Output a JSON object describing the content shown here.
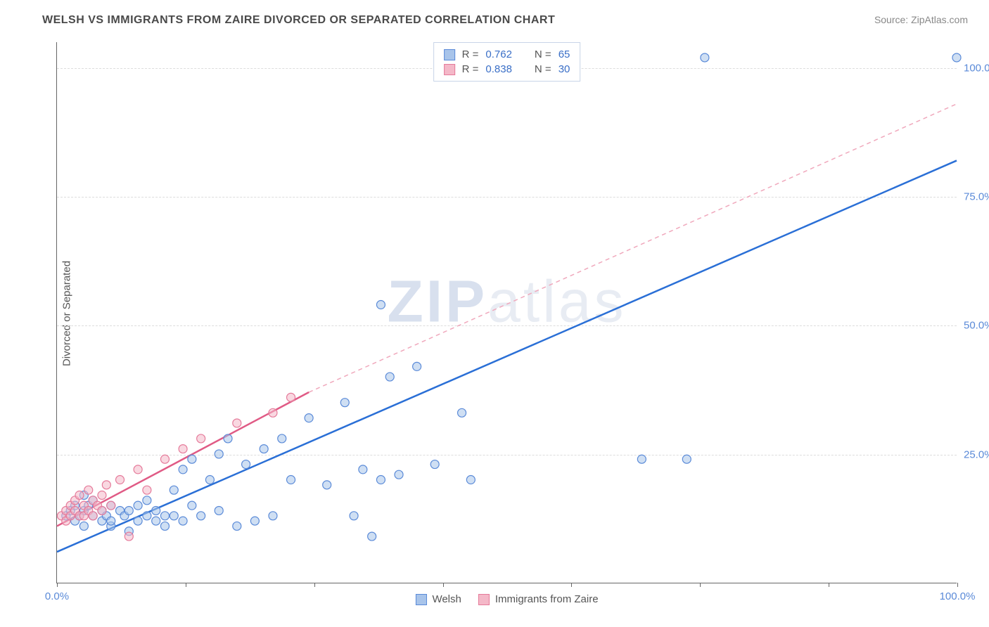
{
  "title": "WELSH VS IMMIGRANTS FROM ZAIRE DIVORCED OR SEPARATED CORRELATION CHART",
  "source": "Source: ZipAtlas.com",
  "ylabel": "Divorced or Separated",
  "watermark_bold": "ZIP",
  "watermark_rest": "atlas",
  "chart": {
    "type": "scatter-with-regression",
    "xlim": [
      0,
      100
    ],
    "ylim": [
      0,
      105
    ],
    "ytick_values": [
      25,
      50,
      75,
      100
    ],
    "ytick_labels": [
      "25.0%",
      "50.0%",
      "75.0%",
      "100.0%"
    ],
    "xtick_values": [
      0,
      14.3,
      28.6,
      42.9,
      57.1,
      71.4,
      85.7,
      100
    ],
    "xtick_labels_shown": {
      "0": "0.0%",
      "100": "100.0%"
    },
    "grid_color": "#dddddd",
    "background_color": "#ffffff",
    "axis_color": "#666666",
    "marker_radius": 6,
    "marker_stroke_width": 1.2,
    "series": [
      {
        "name": "Welsh",
        "fill_color": "#a8c4ea",
        "stroke_color": "#5a8ad8",
        "fill_opacity": 0.55,
        "line_color": "#2a6fd6",
        "line_width": 2.5,
        "line_dash": "none",
        "regression": {
          "x1": 0,
          "y1": 6,
          "x2": 100,
          "y2": 82
        },
        "R": 0.762,
        "N": 65,
        "points": [
          [
            1,
            13
          ],
          [
            1.5,
            14
          ],
          [
            2,
            12
          ],
          [
            2,
            15
          ],
          [
            2.5,
            13
          ],
          [
            3,
            11
          ],
          [
            3,
            14
          ],
          [
            3.5,
            15
          ],
          [
            4,
            13
          ],
          [
            4,
            16
          ],
          [
            5,
            12
          ],
          [
            5,
            14
          ],
          [
            5.5,
            13
          ],
          [
            6,
            15
          ],
          [
            6,
            11
          ],
          [
            7,
            14
          ],
          [
            7.5,
            13
          ],
          [
            8,
            10
          ],
          [
            8,
            14
          ],
          [
            9,
            12
          ],
          [
            9,
            15
          ],
          [
            10,
            13
          ],
          [
            10,
            16
          ],
          [
            11,
            12
          ],
          [
            11,
            14
          ],
          [
            12,
            13
          ],
          [
            12,
            11
          ],
          [
            13,
            18
          ],
          [
            13,
            13
          ],
          [
            14,
            12
          ],
          [
            14,
            22
          ],
          [
            15,
            15
          ],
          [
            15,
            24
          ],
          [
            16,
            13
          ],
          [
            17,
            20
          ],
          [
            18,
            25
          ],
          [
            18,
            14
          ],
          [
            19,
            28
          ],
          [
            20,
            11
          ],
          [
            21,
            23
          ],
          [
            22,
            12
          ],
          [
            23,
            26
          ],
          [
            24,
            13
          ],
          [
            25,
            28
          ],
          [
            26,
            20
          ],
          [
            28,
            32
          ],
          [
            30,
            19
          ],
          [
            32,
            35
          ],
          [
            33,
            13
          ],
          [
            34,
            22
          ],
          [
            35,
            9
          ],
          [
            36,
            54
          ],
          [
            36,
            20
          ],
          [
            37,
            40
          ],
          [
            38,
            21
          ],
          [
            40,
            42
          ],
          [
            42,
            23
          ],
          [
            45,
            33
          ],
          [
            46,
            20
          ],
          [
            65,
            24
          ],
          [
            70,
            24
          ],
          [
            72,
            102
          ],
          [
            100,
            102
          ],
          [
            3,
            17
          ],
          [
            6,
            12
          ]
        ]
      },
      {
        "name": "Immigrants from Zaire",
        "fill_color": "#f4b8c8",
        "stroke_color": "#e57a9a",
        "fill_opacity": 0.55,
        "line_color": "#e05a85",
        "line_width": 2.5,
        "line_dash": "none",
        "dash_extension_color": "#f0a8bc",
        "regression": {
          "x1": 0,
          "y1": 11,
          "x2": 28,
          "y2": 37
        },
        "regression_ext": {
          "x1": 28,
          "y1": 37,
          "x2": 100,
          "y2": 93
        },
        "R": 0.838,
        "N": 30,
        "points": [
          [
            0.5,
            13
          ],
          [
            1,
            14
          ],
          [
            1,
            12
          ],
          [
            1.5,
            15
          ],
          [
            1.5,
            13
          ],
          [
            2,
            16
          ],
          [
            2,
            14
          ],
          [
            2.5,
            13
          ],
          [
            2.5,
            17
          ],
          [
            3,
            15
          ],
          [
            3,
            13
          ],
          [
            3.5,
            18
          ],
          [
            3.5,
            14
          ],
          [
            4,
            16
          ],
          [
            4,
            13
          ],
          [
            4.5,
            15
          ],
          [
            5,
            17
          ],
          [
            5,
            14
          ],
          [
            5.5,
            19
          ],
          [
            6,
            15
          ],
          [
            7,
            20
          ],
          [
            8,
            9
          ],
          [
            9,
            22
          ],
          [
            10,
            18
          ],
          [
            12,
            24
          ],
          [
            14,
            26
          ],
          [
            16,
            28
          ],
          [
            20,
            31
          ],
          [
            24,
            33
          ],
          [
            26,
            36
          ]
        ]
      }
    ],
    "legend_top": [
      {
        "swatch_fill": "#a8c4ea",
        "swatch_stroke": "#5a8ad8",
        "r_label": "R =",
        "r_val": "0.762",
        "n_label": "N =",
        "n_val": "65"
      },
      {
        "swatch_fill": "#f4b8c8",
        "swatch_stroke": "#e57a9a",
        "r_label": "R =",
        "r_val": "0.838",
        "n_label": "N =",
        "n_val": "30"
      }
    ],
    "legend_bottom": [
      {
        "swatch_fill": "#a8c4ea",
        "swatch_stroke": "#5a8ad8",
        "label": "Welsh"
      },
      {
        "swatch_fill": "#f4b8c8",
        "swatch_stroke": "#e57a9a",
        "label": "Immigrants from Zaire"
      }
    ]
  }
}
